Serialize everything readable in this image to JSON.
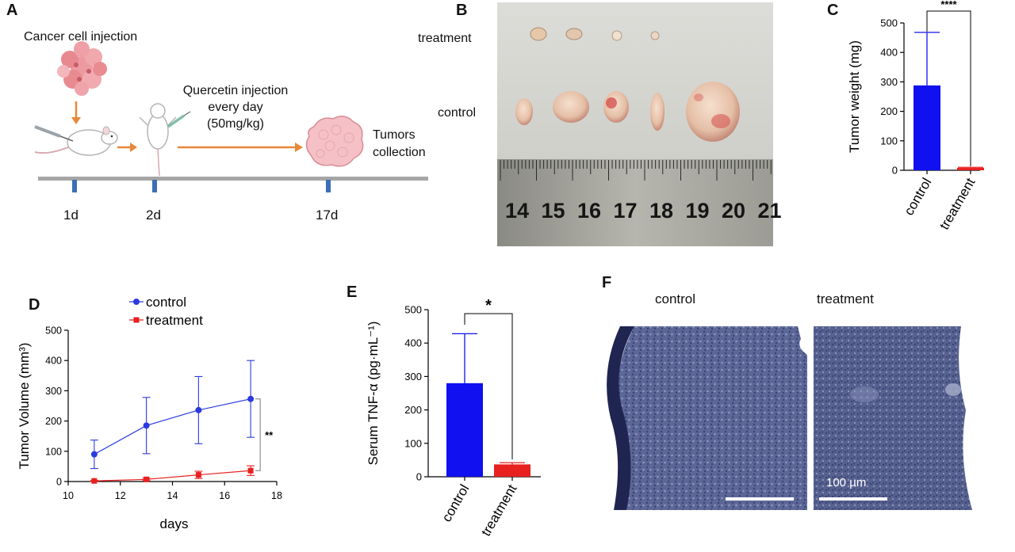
{
  "panels": {
    "a": "A",
    "b": "B",
    "c": "C",
    "d": "D",
    "e": "E",
    "f": "F"
  },
  "schematic": {
    "cancel_cell_injection": "Cancer cell injection",
    "quercetin_line1": "Quercetin injection",
    "quercetin_line2": "every day",
    "quercetin_line3": "(50mg/kg)",
    "tumors_line1": "Tumors",
    "tumors_line2": "collection",
    "days": [
      "1d",
      "2d",
      "17d"
    ],
    "colors": {
      "arrow": "#e8883a",
      "timeline": "#a6a6a6",
      "tick": "#3b6fb6",
      "tumor": "#f2b8be",
      "cells": "#e57f86"
    }
  },
  "photo_b": {
    "label_treatment": "treatment",
    "label_control": "control",
    "ruler_numbers": [
      "14",
      "15",
      "16",
      "17",
      "18",
      "19",
      "20",
      "21"
    ]
  },
  "histology_f": {
    "label_control": "control",
    "label_treatment": "treatment",
    "scale_bar": "100 µm"
  },
  "chart_data": [
    {
      "id": "C",
      "type": "bar",
      "categories": [
        "control",
        "treatment"
      ],
      "values": [
        288,
        8
      ],
      "error": [
        180,
        2
      ],
      "colors": [
        "#1010f0",
        "#e82020"
      ],
      "ylabel": "Tumor weight (mg)",
      "ylim": [
        0,
        500
      ],
      "yticks": [
        "0",
        "100",
        "200",
        "300",
        "400",
        "500"
      ],
      "significance": "****"
    },
    {
      "id": "D",
      "type": "line",
      "series": [
        {
          "name": "control",
          "color": "#2a3ae0",
          "x": [
            11,
            13,
            15,
            17
          ],
          "y": [
            90,
            185,
            236,
            273
          ],
          "err": [
            47,
            93,
            111,
            127
          ]
        },
        {
          "name": "treatment",
          "color": "#e82020",
          "x": [
            11,
            13,
            15,
            17
          ],
          "y": [
            2,
            7,
            22,
            36
          ],
          "err": [
            2,
            4,
            12,
            16
          ]
        }
      ],
      "xlabel": "days",
      "ylabel": "Tumor Volume (mm³)",
      "xlim": [
        10,
        18
      ],
      "ylim": [
        0,
        500
      ],
      "xticks": [
        "10",
        "12",
        "14",
        "16",
        "18"
      ],
      "yticks": [
        "0",
        "100",
        "200",
        "300",
        "400",
        "500"
      ],
      "significance": "**",
      "legend": "top"
    },
    {
      "id": "E",
      "type": "bar",
      "categories": [
        "control",
        "treatment"
      ],
      "values": [
        280,
        37
      ],
      "error": [
        148,
        5
      ],
      "colors": [
        "#1010f0",
        "#e82020"
      ],
      "ylabel": "Serum TNF-α (pg·mL⁻¹)",
      "ylim": [
        0,
        500
      ],
      "yticks": [
        "0",
        "100",
        "200",
        "300",
        "400",
        "500"
      ],
      "significance": "*"
    }
  ]
}
